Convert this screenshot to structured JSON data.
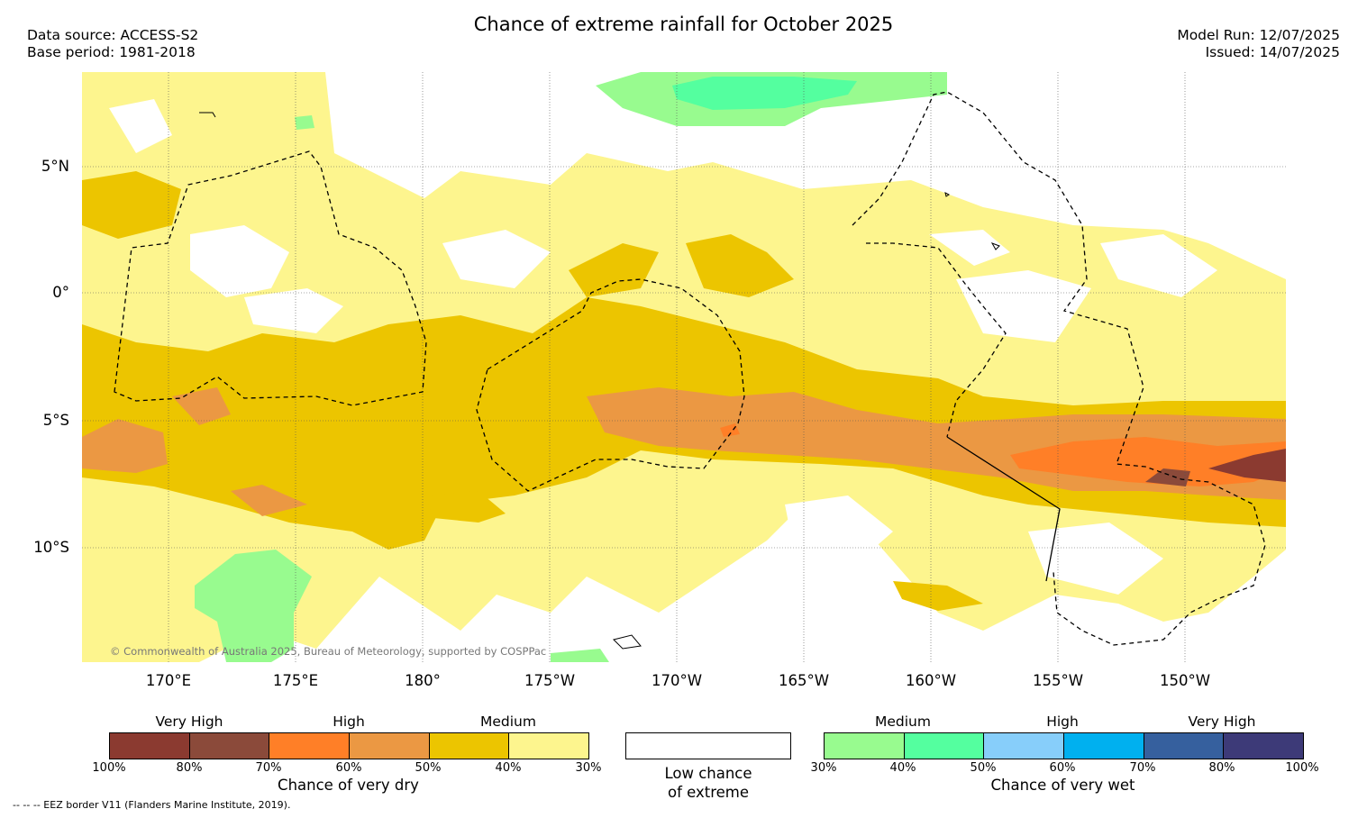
{
  "title": "Chance of extreme rainfall for October 2025",
  "data_source": "Data source: ACCESS-S2",
  "base_period": "Base period: 1981-2018",
  "model_run": "Model Run: 12/07/2025",
  "issued": "Issued: 14/07/2025",
  "copyright": "© Commonwealth of Australia 2025, Bureau of Meteorology, supported by COSPPac",
  "eez_note": "--  --  -- EEZ border V11 (Flanders Marine Institute, 2019).",
  "lat_labels": [
    "5°N",
    "0°",
    "5°S",
    "10°S"
  ],
  "lon_labels": [
    "170°E",
    "175°E",
    "180°",
    "175°W",
    "170°W",
    "165°W",
    "160°W",
    "155°W",
    "150°W"
  ],
  "colors": {
    "dry": [
      "#8b3a30",
      "#8b4a3a",
      "#ff7f27",
      "#eb9843",
      "#ecc500",
      "#fdf58e"
    ],
    "wet": [
      "#98fb8f",
      "#54ff9f",
      "#87cefa",
      "#00b0ef",
      "#36609e",
      "#3d3a78"
    ],
    "land_outline": "#000000"
  },
  "legend": {
    "dry": {
      "levels": [
        "Very High",
        "High",
        "Medium"
      ],
      "ticks": [
        "100%",
        "80%",
        "70%",
        "60%",
        "50%",
        "40%",
        "30%"
      ],
      "caption": "Chance of very dry"
    },
    "low": {
      "line1": "Low chance",
      "line2": "of extreme"
    },
    "wet": {
      "levels": [
        "Medium",
        "High",
        "Very High"
      ],
      "ticks": [
        "30%",
        "40%",
        "50%",
        "60%",
        "70%",
        "80%",
        "100%"
      ],
      "caption": "Chance of very wet"
    }
  }
}
